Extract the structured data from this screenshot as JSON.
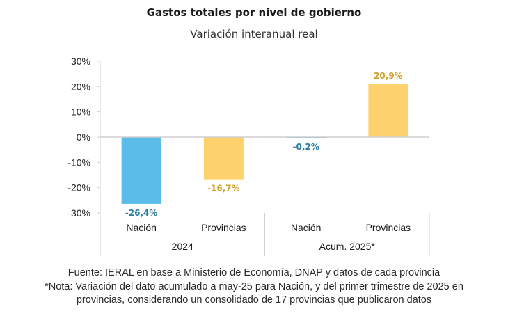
{
  "chart_data": {
    "type": "bar",
    "title": "Gastos totales por nivel de gobierno",
    "subtitle": "Variación interanual real",
    "xlabel": "",
    "ylabel": "",
    "ylim": [
      -30,
      30
    ],
    "yticks": [
      30,
      20,
      10,
      0,
      -10,
      -20,
      -30
    ],
    "ytick_labels": [
      "30%",
      "20%",
      "10%",
      "0%",
      "-10%",
      "-20%",
      "-30%"
    ],
    "grid": false,
    "groups": [
      {
        "label": "2024",
        "categories": [
          "Nación",
          "Provincias"
        ]
      },
      {
        "label": "Acum. 2025*",
        "categories": [
          "Nación",
          "Provincias"
        ]
      }
    ],
    "bars": [
      {
        "group": "2024",
        "category": "Nación",
        "value": -26.4,
        "label": "-26,4%",
        "color": "#5BBCEA",
        "label_color": "#2E7D9E"
      },
      {
        "group": "2024",
        "category": "Provincias",
        "value": -16.7,
        "label": "-16,7%",
        "color": "#FDD26E",
        "label_color": "#CFA22A"
      },
      {
        "group": "Acum. 2025*",
        "category": "Nación",
        "value": -0.2,
        "label": "-0,2%",
        "color": "#5BBCEA",
        "label_color": "#2E7D9E"
      },
      {
        "group": "Acum. 2025*",
        "category": "Provincias",
        "value": 20.9,
        "label": "20,9%",
        "color": "#FDD26E",
        "label_color": "#CFA22A"
      }
    ],
    "legend": "none"
  },
  "footer": {
    "source": "Fuente: IERAL en base a Ministerio de Economía, DNAP y datos de cada provincia",
    "note_line1": "*Nota: Variación del dato acumulado a may-25 para Nación, y del primer trimestre de 2025 en",
    "note_line2": "provincias, considerando un consolidado de 17 provincias que publicaron datos"
  }
}
